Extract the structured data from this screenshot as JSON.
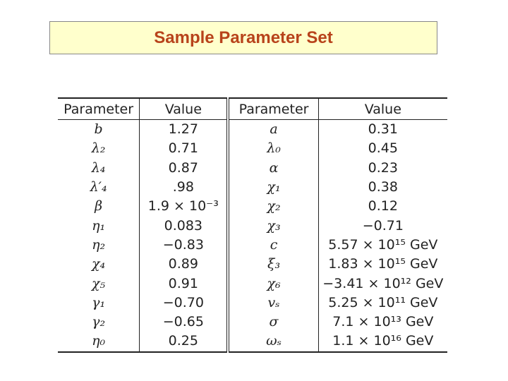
{
  "header": {
    "title": "Sample Parameter Set"
  },
  "table": {
    "headers": [
      "Parameter",
      "Value",
      "Parameter",
      "Value"
    ],
    "rows": [
      [
        "b",
        "1.27",
        "a",
        "0.31"
      ],
      [
        "λ₂",
        "0.71",
        "λ₀",
        "0.45"
      ],
      [
        "λ₄",
        "0.87",
        "α",
        "0.23"
      ],
      [
        "λ′₄",
        ".98",
        "χ₁",
        "0.38"
      ],
      [
        "β",
        "1.9 × 10⁻³",
        "χ₂",
        "0.12"
      ],
      [
        "η₁",
        "0.083",
        "χ₃",
        "−0.71"
      ],
      [
        "η₂",
        "−0.83",
        "c",
        "5.57 × 10¹⁵ GeV"
      ],
      [
        "χ₄",
        "0.89",
        "ξ₃",
        "1.83 × 10¹⁵ GeV"
      ],
      [
        "χ₅",
        "0.91",
        "χ₆",
        "−3.41 × 10¹² GeV"
      ],
      [
        "γ₁",
        "−0.70",
        "vₛ",
        "5.25 × 10¹¹ GeV"
      ],
      [
        "γ₂",
        "−0.65",
        "σ",
        "7.1 × 10¹³ GeV"
      ],
      [
        "η₀",
        "0.25",
        "ωₛ",
        "1.1 × 10¹⁶ GeV"
      ]
    ]
  }
}
